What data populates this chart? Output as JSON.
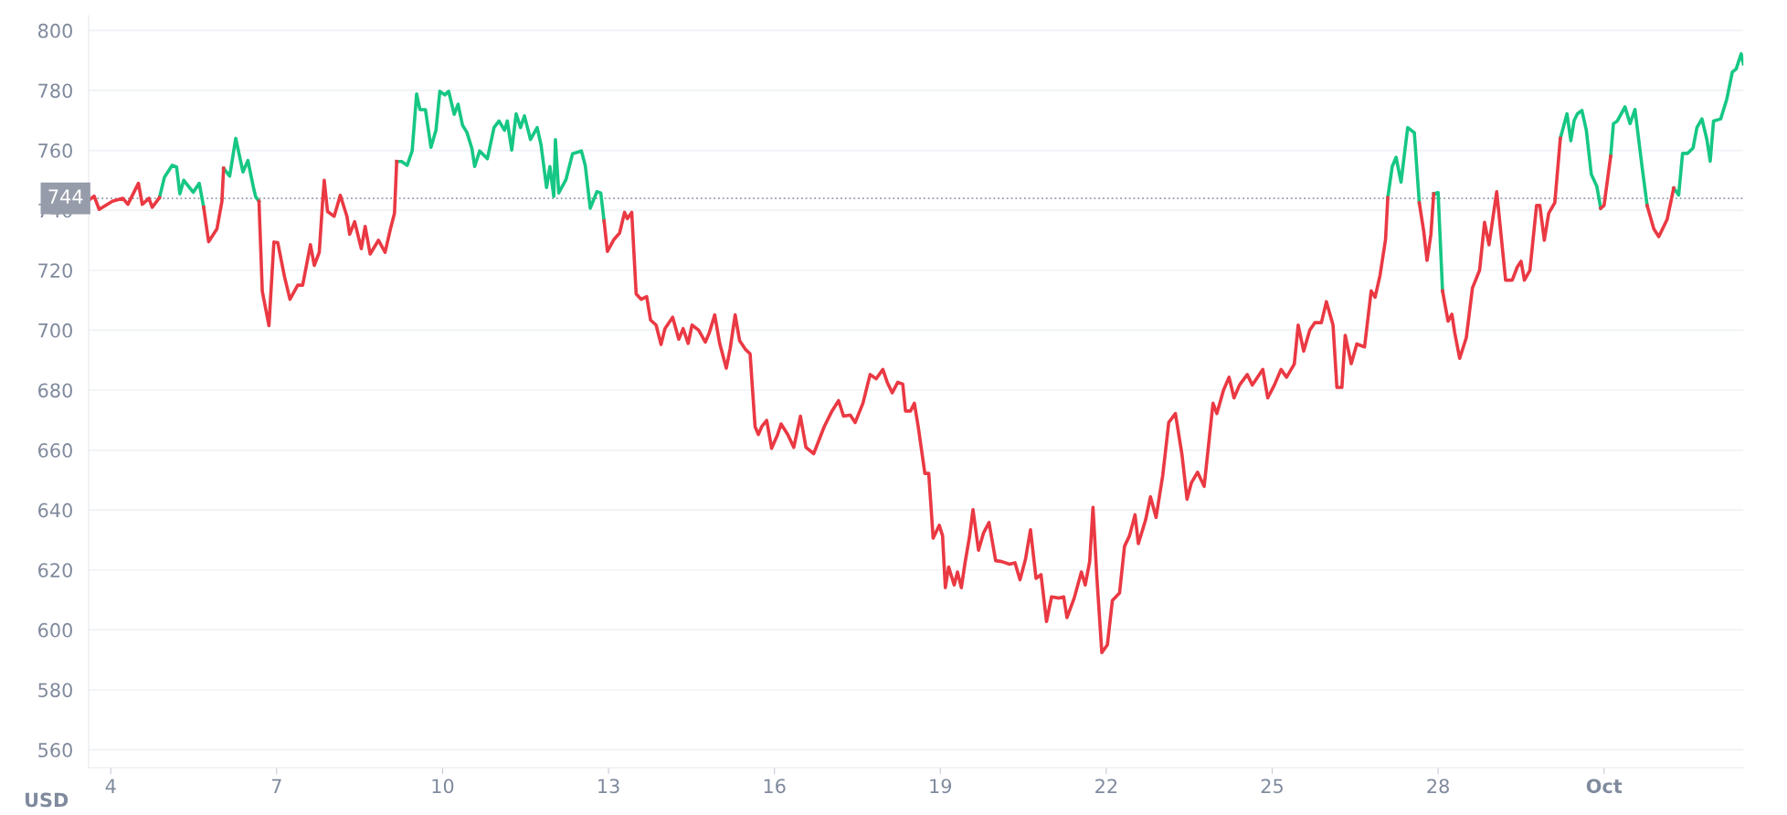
{
  "chart_data": {
    "type": "line",
    "ylabel": "USD",
    "xlim": [
      3.6,
      33.52
    ],
    "ylim": [
      554,
      805
    ],
    "xticks": [
      4,
      7,
      10,
      13,
      16,
      19,
      22,
      25,
      28,
      {
        "value": 31,
        "label": "Oct"
      }
    ],
    "yticks": [
      560,
      580,
      600,
      620,
      640,
      660,
      680,
      700,
      720,
      740,
      760,
      780,
      800
    ],
    "grid": "y",
    "legend": false,
    "marker": "none",
    "line_style": "solid",
    "ref_lines": [
      {
        "axis": "y",
        "value": 744,
        "label": "744",
        "color": "#979cab",
        "line_style": "dotted"
      }
    ],
    "series": [
      {
        "color": "#16c784",
        "x": [
          4.88,
          4.97,
          5.11,
          5.19,
          5.25,
          5.32,
          5.49,
          5.6,
          5.68,
          6.04,
          6.15,
          6.26,
          6.39,
          6.48,
          6.58,
          6.62,
          6.68,
          9.17,
          9.26,
          9.36,
          9.45,
          9.53,
          9.59,
          9.69,
          9.79,
          9.88,
          9.95,
          10.04,
          10.11,
          10.21,
          10.28,
          10.36,
          10.44,
          10.53,
          10.58,
          10.67,
          10.81,
          10.93,
          11.02,
          11.12,
          11.17,
          11.25,
          11.33,
          11.41,
          11.48,
          11.59,
          11.71,
          11.78,
          11.88,
          11.94,
          12.01,
          12.04,
          12.1,
          12.23,
          12.35,
          12.51,
          12.58,
          12.67,
          12.79,
          12.86,
          12.92,
          27.09,
          27.17,
          27.24,
          27.33,
          27.45,
          27.57,
          27.66,
          27.92,
          28.0,
          28.08,
          30.21,
          30.33,
          30.4,
          30.46,
          30.52,
          30.6,
          30.68,
          30.77,
          30.87,
          30.94,
          31.12,
          31.17,
          31.24,
          31.38,
          31.47,
          31.56,
          31.69,
          31.78,
          32.26,
          32.35,
          32.42,
          32.51,
          32.61,
          32.68,
          32.77,
          32.86,
          32.92,
          32.98,
          33.11,
          33.22,
          33.32,
          33.39,
          33.48,
          33.52
        ],
        "values": [
          744.2,
          751,
          755,
          754.5,
          745.5,
          750,
          746,
          749,
          741,
          754,
          751.4,
          764,
          752.8,
          756.6,
          747.6,
          744.5,
          743,
          756.3,
          756.3,
          755,
          759.8,
          778.8,
          773.6,
          773.6,
          761,
          766.7,
          779.7,
          778.5,
          779.7,
          772,
          775.4,
          768.4,
          766,
          760.6,
          754.6,
          759.8,
          757.2,
          767.6,
          769.8,
          766.7,
          769.8,
          760.1,
          772.2,
          767.6,
          771.5,
          763.6,
          767.6,
          761.8,
          747.6,
          754.6,
          744.6,
          763.6,
          745.8,
          750.2,
          758.9,
          759.8,
          754.9,
          740.7,
          746.2,
          745.8,
          736.4,
          744.2,
          754.6,
          757.7,
          749.4,
          767.6,
          765.9,
          742.5,
          745.5,
          745.9,
          713.1,
          764,
          772.2,
          763.2,
          770,
          772.2,
          773.3,
          766.7,
          752,
          748,
          740.7,
          758,
          768.9,
          769.8,
          774.5,
          768.9,
          773.6,
          754.2,
          741.6,
          747.4,
          745.1,
          759,
          759,
          760.8,
          767.6,
          770.5,
          763.6,
          756.4,
          769.8,
          770.5,
          777.1,
          786.1,
          787.2,
          792.2,
          788.9
        ]
      },
      {
        "color": "#ea3943",
        "x": [
          3.6,
          3.7,
          3.79,
          4.03,
          4.22,
          4.31,
          4.5,
          4.57,
          4.69,
          4.75,
          4.88,
          5.68,
          5.77,
          5.92,
          6.01,
          6.04,
          6.68,
          6.74,
          6.86,
          6.95,
          7.02,
          7.14,
          7.24,
          7.38,
          7.47,
          7.61,
          7.68,
          7.77,
          7.83,
          7.86,
          7.92,
          8.04,
          8.15,
          8.27,
          8.32,
          8.41,
          8.53,
          8.6,
          8.69,
          8.84,
          8.96,
          9.06,
          9.13,
          9.17,
          12.92,
          12.98,
          13.1,
          13.2,
          13.29,
          13.34,
          13.42,
          13.5,
          13.59,
          13.69,
          13.76,
          13.86,
          13.95,
          14.02,
          14.16,
          14.27,
          14.35,
          14.44,
          14.51,
          14.63,
          14.75,
          14.82,
          14.92,
          15.01,
          15.13,
          15.2,
          15.29,
          15.37,
          15.48,
          15.56,
          15.65,
          15.71,
          15.77,
          15.86,
          15.95,
          16.05,
          16.12,
          16.24,
          16.35,
          16.47,
          16.57,
          16.71,
          16.9,
          17.04,
          17.16,
          17.25,
          17.37,
          17.46,
          17.6,
          17.73,
          17.84,
          17.96,
          18.04,
          18.13,
          18.23,
          18.32,
          18.37,
          18.46,
          18.53,
          18.6,
          18.72,
          18.79,
          18.87,
          18.98,
          19.04,
          19.09,
          19.15,
          19.25,
          19.31,
          19.38,
          19.45,
          19.53,
          19.59,
          19.69,
          19.78,
          19.88,
          20.0,
          20.11,
          20.25,
          20.35,
          20.44,
          20.54,
          20.63,
          20.73,
          20.82,
          20.92,
          21.01,
          21.15,
          21.23,
          21.29,
          21.42,
          21.55,
          21.62,
          21.7,
          21.76,
          21.83,
          21.92,
          22.02,
          22.11,
          22.24,
          22.33,
          22.42,
          22.52,
          22.58,
          22.71,
          22.8,
          22.9,
          23.02,
          23.13,
          23.25,
          23.37,
          23.46,
          23.54,
          23.65,
          23.77,
          23.93,
          24.0,
          24.12,
          24.22,
          24.31,
          24.41,
          24.55,
          24.64,
          24.83,
          24.92,
          25.04,
          25.16,
          25.26,
          25.4,
          25.47,
          25.57,
          25.68,
          25.77,
          25.89,
          25.98,
          26.1,
          26.17,
          26.26,
          26.32,
          26.43,
          26.53,
          26.67,
          26.79,
          26.86,
          26.95,
          27.05,
          27.09,
          27.66,
          27.74,
          27.8,
          27.87,
          27.92,
          28.08,
          28.18,
          28.25,
          28.3,
          28.39,
          28.51,
          28.62,
          28.75,
          28.84,
          28.92,
          29.06,
          29.22,
          29.34,
          29.43,
          29.5,
          29.56,
          29.66,
          29.78,
          29.84,
          29.92,
          30.0,
          30.11,
          30.21,
          30.94,
          31.0,
          31.12,
          31.78,
          31.9,
          31.99,
          32.14,
          32.26
        ],
        "values": [
          743.3,
          744.7,
          740.3,
          743,
          744,
          742,
          749,
          742,
          744,
          741,
          744.2,
          741,
          729.5,
          733.8,
          743,
          754,
          743,
          713,
          701.5,
          729.4,
          729.2,
          718,
          710.3,
          715,
          715,
          728.5,
          721.6,
          726,
          742.7,
          750,
          739.6,
          738,
          745,
          738,
          732,
          736.2,
          727.2,
          734.6,
          725.4,
          730,
          726,
          734,
          739,
          756.3,
          736.4,
          726.3,
          730.3,
          732.4,
          739.3,
          737.2,
          739.3,
          712.1,
          710.3,
          711.2,
          703.4,
          701.7,
          695.2,
          700.5,
          704.3,
          697,
          700.5,
          695.6,
          701.7,
          700,
          696,
          699,
          705.1,
          695.6,
          687.3,
          693.9,
          705.1,
          696.5,
          693.5,
          692.1,
          667.8,
          665.2,
          667.8,
          669.9,
          660.6,
          664.8,
          668.7,
          665.2,
          660.9,
          671.3,
          660.9,
          658.8,
          667.8,
          673,
          676.5,
          671.3,
          671.7,
          669.2,
          675.6,
          685.2,
          683.8,
          686.9,
          682.6,
          679.1,
          682.6,
          682,
          673,
          673,
          675.6,
          667.8,
          652.2,
          652.2,
          630.6,
          634.9,
          631.4,
          614.1,
          621,
          615,
          619.3,
          614.1,
          622.8,
          631.4,
          640.1,
          626.6,
          632.3,
          635.8,
          623.1,
          622.8,
          621.9,
          622.4,
          616.7,
          623.6,
          633.4,
          617.2,
          618.4,
          602.8,
          611,
          610.6,
          611,
          604.1,
          610.6,
          619.3,
          615,
          622.8,
          640.9,
          617.6,
          592.4,
          595,
          609.8,
          612.3,
          627.9,
          631.4,
          638.4,
          628.8,
          636.6,
          644.4,
          637.5,
          651.4,
          669.2,
          672.2,
          658.3,
          643.6,
          649.1,
          652.6,
          647.9,
          675.6,
          672.2,
          680,
          684.3,
          677.4,
          681.7,
          685.2,
          681.7,
          686.9,
          677.4,
          681.7,
          686.9,
          684.3,
          688.7,
          701.7,
          693,
          700,
          702.5,
          702.5,
          709.5,
          701.7,
          680.9,
          680.9,
          698.3,
          688.8,
          695.4,
          694.4,
          713.1,
          711,
          718.3,
          730.3,
          744.2,
          742.5,
          733,
          723.3,
          732,
          745.5,
          713.1,
          703,
          705.3,
          699.2,
          690.6,
          697.5,
          714,
          720,
          736,
          728.5,
          746.2,
          716.7,
          716.7,
          721,
          723,
          716.7,
          720,
          741.6,
          741.6,
          730,
          739,
          742.5,
          764,
          740.7,
          741.6,
          758,
          741.6,
          733.8,
          731.2,
          736.9,
          747.4
        ]
      }
    ]
  }
}
